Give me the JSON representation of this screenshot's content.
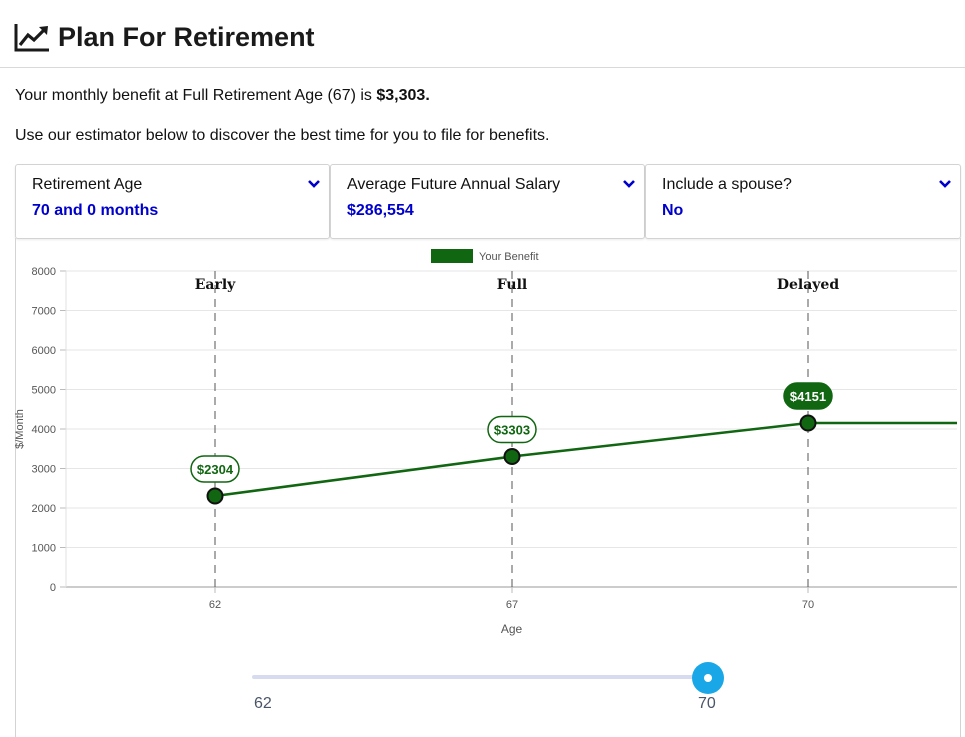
{
  "header": {
    "title": "Plan For Retirement",
    "icon": "trending-up-icon"
  },
  "intro": {
    "benefit_prefix": "Your monthly benefit at Full Retirement Age (67) is ",
    "benefit_amount": "$3,303.",
    "estimator_text": "Use our estimator below to discover the best time for you to file for benefits."
  },
  "panels": [
    {
      "label": "Retirement Age",
      "value": "70 and 0 months"
    },
    {
      "label": "Average Future Annual Salary",
      "value": "$286,554"
    },
    {
      "label": "Include a spouse?",
      "value": "No"
    }
  ],
  "colors": {
    "accent_blue": "#0000cc",
    "series_green": "#116611",
    "slider_blue": "#1aa7e8"
  },
  "chart_data": {
    "type": "line",
    "legend": [
      "Your Benefit"
    ],
    "legend_position": "top",
    "xlabel": "Age",
    "ylabel": "$/Month",
    "ylim": [
      0,
      8000
    ],
    "yticks": [
      0,
      1000,
      2000,
      3000,
      4000,
      5000,
      6000,
      7000,
      8000
    ],
    "xticks": [
      62,
      67,
      70
    ],
    "grid": true,
    "markers": [
      {
        "age": 62,
        "label": "Early"
      },
      {
        "age": 67,
        "label": "Full"
      },
      {
        "age": 70,
        "label": "Delayed"
      }
    ],
    "series": [
      {
        "name": "Your Benefit",
        "points": [
          {
            "x": 62,
            "y": 2304,
            "label": "$2304"
          },
          {
            "x": 67,
            "y": 3303,
            "label": "$3303"
          },
          {
            "x": 70,
            "y": 4151,
            "label": "$4151"
          }
        ],
        "extends_flat_after_last": true
      }
    ]
  },
  "slider": {
    "min_label": "62",
    "max_label": "70",
    "value": 70,
    "min": 62,
    "max": 70
  }
}
